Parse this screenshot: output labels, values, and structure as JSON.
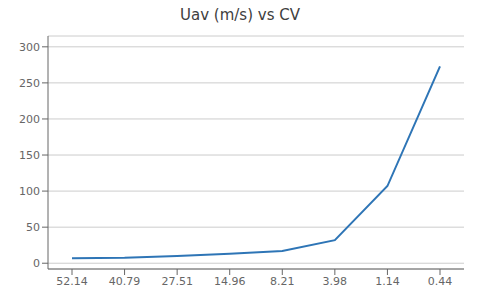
{
  "chart_data": {
    "type": "line",
    "title": "Uav (m/s) vs CV",
    "categories": [
      "52.14",
      "40.79",
      "27.51",
      "14.96",
      "8.21",
      "3.98",
      "1.14",
      "0.44"
    ],
    "values": [
      7,
      7.5,
      10,
      13,
      17,
      32,
      107,
      273
    ],
    "color": "#2E75B6",
    "ylim": [
      -8,
      315
    ],
    "yticks": [
      0,
      50,
      100,
      150,
      200,
      250,
      300
    ],
    "grid": true
  }
}
